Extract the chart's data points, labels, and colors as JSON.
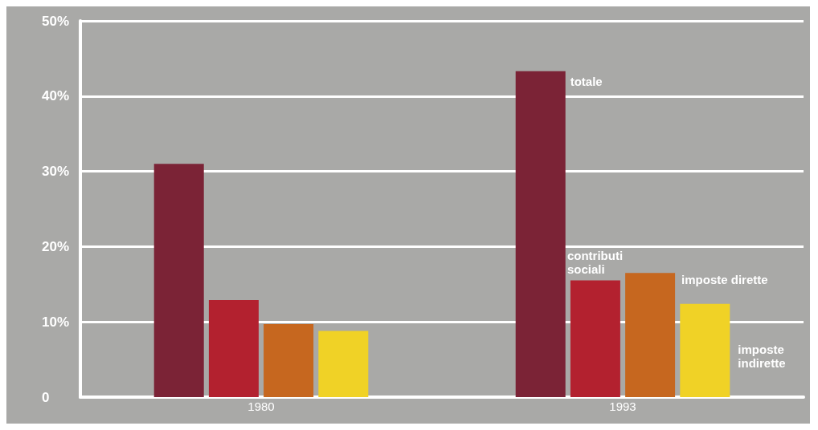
{
  "chart_data": {
    "type": "bar",
    "categories": [
      "1980",
      "1993"
    ],
    "series": [
      {
        "name": "totale",
        "color": "#7b2336",
        "values": [
          31,
          43.3
        ]
      },
      {
        "name": "contributi sociali",
        "color": "#b3212f",
        "values": [
          12.9,
          15.5
        ]
      },
      {
        "name": "imposte dirette",
        "color": "#c6671f",
        "values": [
          9.7,
          16.5
        ]
      },
      {
        "name": "imposte indirette",
        "color": "#f0d226",
        "values": [
          8.8,
          12.4
        ]
      }
    ],
    "ylim": [
      0,
      50
    ],
    "yticks": [
      0,
      {
        "value": 10,
        "label": "10%"
      },
      {
        "value": 20,
        "label": "20%"
      },
      {
        "value": 30,
        "label": "30%"
      },
      {
        "value": 40,
        "label": "40%"
      },
      {
        "value": 50,
        "label": "50%"
      }
    ],
    "grid": true
  }
}
